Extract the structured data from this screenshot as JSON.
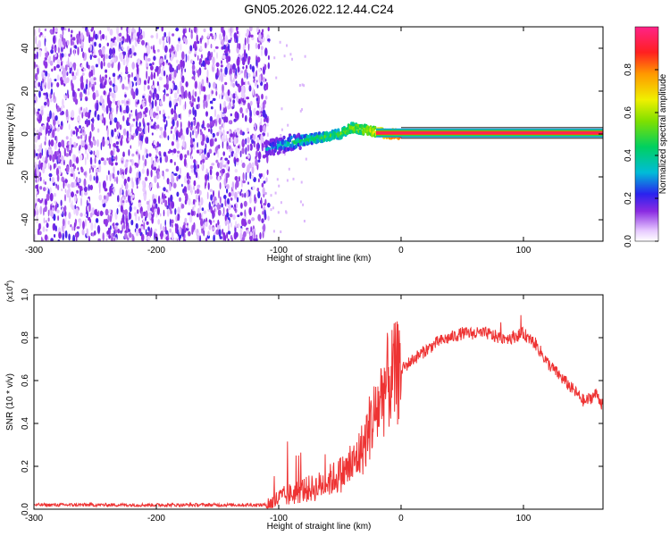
{
  "title": "GN05.2026.022.12.44.C24",
  "chart_data": [
    {
      "type": "heatmap",
      "name": "spectrogram",
      "title": "GN05.2026.022.12.44.C24",
      "xlabel": "Height of straight line (km)",
      "ylabel": "Frequency (Hz)",
      "xlim": [
        -300,
        165
      ],
      "ylim": [
        -50,
        50
      ],
      "x_ticks": [
        -300,
        -200,
        -100,
        0,
        100
      ],
      "y_ticks": [
        -40,
        -20,
        0,
        20,
        40
      ],
      "colorbar": {
        "label": "Normalized spectral amplitude",
        "range": [
          0,
          1
        ],
        "ticks": [
          0.0,
          0.2,
          0.4,
          0.6,
          0.8
        ],
        "tick_labels": [
          "0.0",
          "0.2",
          "0.4",
          "0.6",
          "0.8"
        ],
        "colormap": "rainbow"
      },
      "regions": [
        {
          "desc": "noise",
          "x_range": [
            -300,
            -108
          ],
          "freq_range": [
            -50,
            50
          ],
          "amplitude": 0.12
        },
        {
          "desc": "wandering signal",
          "x": [
            -110,
            -90,
            -70,
            -50,
            -40,
            -30,
            -20,
            -10,
            0
          ],
          "freq": [
            -7,
            -4,
            -2,
            0,
            3,
            2,
            1,
            0,
            0
          ],
          "amplitude": [
            0.3,
            0.4,
            0.45,
            0.5,
            0.55,
            0.6,
            0.7,
            0.85,
            0.95
          ]
        },
        {
          "desc": "steady tone",
          "x_range": [
            0,
            165
          ],
          "freq": 0.5,
          "amplitude": 0.95
        }
      ]
    },
    {
      "type": "line",
      "name": "snr",
      "xlabel": "Height of straight line (km)",
      "ylabel": "SNR (10 * v/v)",
      "y_multiplier": "(x10^4)",
      "y_multiplier_base": "(x10",
      "y_multiplier_exp": "4",
      "xlim": [
        -300,
        165
      ],
      "ylim": [
        0,
        1.0
      ],
      "x_ticks": [
        -300,
        -200,
        -100,
        0,
        100
      ],
      "y_ticks": [
        0.0,
        0.2,
        0.4,
        0.6,
        0.8,
        1.0
      ],
      "y_tick_labels": [
        "0.0",
        "0.2",
        "0.4",
        "0.6",
        "0.8",
        "1.0"
      ],
      "series": [
        {
          "color": "#ee3333",
          "x": [
            -300,
            -250,
            -200,
            -150,
            -120,
            -110,
            -105,
            -100,
            -90,
            -80,
            -70,
            -60,
            -50,
            -40,
            -30,
            -25,
            -20,
            -15,
            -10,
            0,
            10,
            20,
            30,
            40,
            50,
            60,
            70,
            80,
            90,
            100,
            110,
            120,
            130,
            140,
            150,
            160,
            165
          ],
          "y": [
            0.02,
            0.02,
            0.02,
            0.02,
            0.02,
            0.02,
            0.03,
            0.05,
            0.07,
            0.09,
            0.1,
            0.13,
            0.16,
            0.2,
            0.3,
            0.4,
            0.45,
            0.55,
            0.6,
            0.65,
            0.7,
            0.74,
            0.78,
            0.8,
            0.82,
            0.82,
            0.82,
            0.8,
            0.8,
            0.82,
            0.77,
            0.68,
            0.62,
            0.56,
            0.5,
            0.54,
            0.48
          ]
        }
      ]
    }
  ]
}
